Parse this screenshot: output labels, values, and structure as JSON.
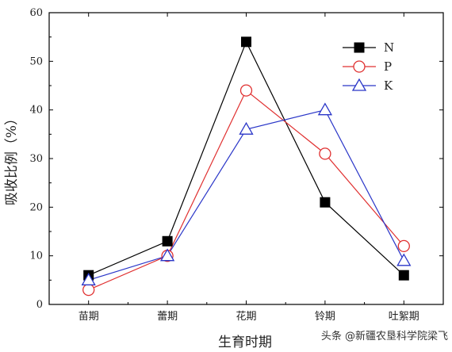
{
  "chart_data": {
    "type": "line",
    "categories": [
      "苗期",
      "蕾期",
      "花期",
      "铃期",
      "吐絮期"
    ],
    "series": [
      {
        "name": "N",
        "values": [
          6,
          13,
          54,
          21,
          6
        ],
        "color": "#000000",
        "marker": "filled-square"
      },
      {
        "name": "P",
        "values": [
          3,
          10,
          44,
          31,
          12
        ],
        "color": "#e03030",
        "marker": "open-circle"
      },
      {
        "name": "K",
        "values": [
          5,
          10,
          36,
          40,
          9
        ],
        "color": "#2a36c8",
        "marker": "open-triangle"
      }
    ],
    "xlabel": "生育时期",
    "ylabel": "吸收比例（%）",
    "ylim": [
      0,
      60
    ],
    "yticks": [
      0,
      10,
      20,
      30,
      40,
      50,
      60
    ],
    "grid": false,
    "legend": "top-right"
  },
  "watermark": "头条 @新疆农垦科学院梁飞"
}
